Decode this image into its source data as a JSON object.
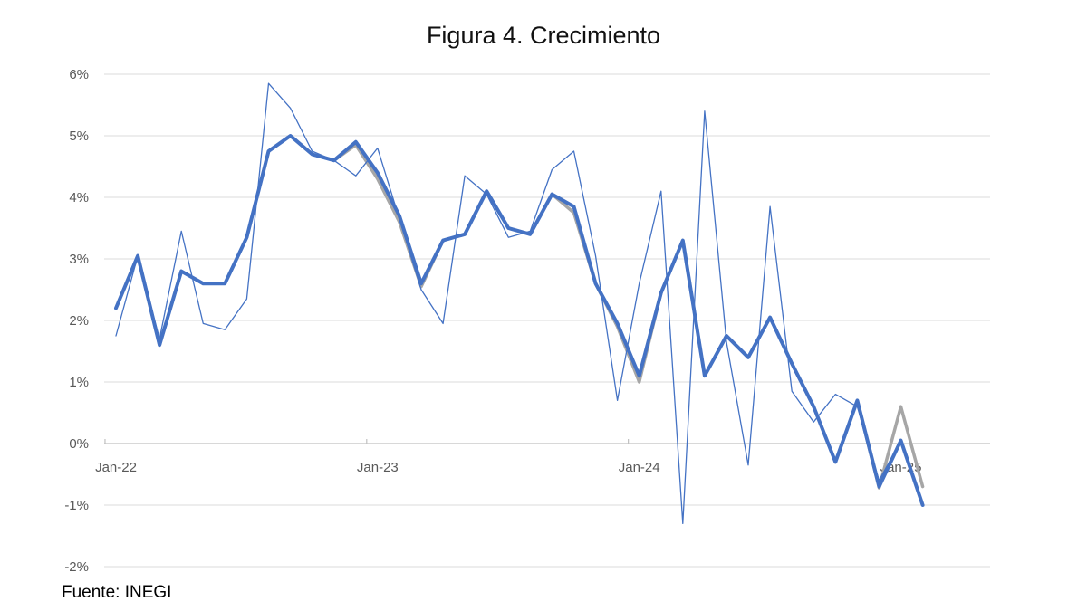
{
  "title": "Figura 4. Crecimiento",
  "source_note": "Fuente: INEGI",
  "colors": {
    "series_blue": "#4472C4",
    "series_gray": "#A6A6A6",
    "gridline": "#DBDBDB",
    "axis_line": "#C0C0C0",
    "axis_text": "#595959",
    "title_text": "#111111"
  },
  "chart_data": {
    "type": "line",
    "title": "Figura 4. Crecimiento",
    "xlabel": "",
    "ylabel": "",
    "ylim": [
      -2,
      6
    ],
    "grid": true,
    "legend": false,
    "y_tick_labels": [
      "6%",
      "5%",
      "4%",
      "3%",
      "2%",
      "1%",
      "0%",
      "-1%",
      "-2%"
    ],
    "y_tick_values": [
      6,
      5,
      4,
      3,
      2,
      1,
      0,
      -1,
      -2
    ],
    "x_tick_labels": [
      "Jan-22",
      "Jan-23",
      "Jan-24",
      "Jan-25"
    ],
    "x": [
      "Jan-22",
      "Feb-22",
      "Mar-22",
      "Apr-22",
      "May-22",
      "Jun-22",
      "Jul-22",
      "Aug-22",
      "Sep-22",
      "Oct-22",
      "Nov-22",
      "Dec-22",
      "Jan-23",
      "Feb-23",
      "Mar-23",
      "Apr-23",
      "May-23",
      "Jun-23",
      "Jul-23",
      "Aug-23",
      "Sep-23",
      "Oct-23",
      "Nov-23",
      "Dec-23",
      "Jan-24",
      "Feb-24",
      "Mar-24",
      "Apr-24",
      "May-24",
      "Jun-24",
      "Jul-24",
      "Aug-24",
      "Sep-24",
      "Oct-24",
      "Nov-24",
      "Dec-24",
      "Jan-25",
      "Feb-25"
    ],
    "series": [
      {
        "name": "serie-gris",
        "color": "#A6A6A6",
        "stroke_width": 3.5,
        "values": [
          2.2,
          3.05,
          1.6,
          2.8,
          2.6,
          2.6,
          3.35,
          4.75,
          5.0,
          4.7,
          4.6,
          4.85,
          4.3,
          3.6,
          2.55,
          3.3,
          3.4,
          4.1,
          3.5,
          3.4,
          4.05,
          3.75,
          2.6,
          1.9,
          1.0,
          2.45,
          3.3,
          1.1,
          1.75,
          1.4,
          2.05,
          1.3,
          0.6,
          -0.3,
          0.7,
          -0.72,
          0.6,
          -0.7
        ]
      },
      {
        "name": "tendencia-gruesa",
        "color": "#4472C4",
        "stroke_width": 4,
        "values": [
          2.2,
          3.05,
          1.6,
          2.8,
          2.6,
          2.6,
          3.35,
          4.75,
          5.0,
          4.7,
          4.6,
          4.9,
          4.4,
          3.7,
          2.6,
          3.3,
          3.4,
          4.1,
          3.5,
          3.4,
          4.05,
          3.85,
          2.6,
          1.95,
          1.1,
          2.45,
          3.3,
          1.1,
          1.75,
          1.4,
          2.05,
          1.3,
          0.6,
          -0.3,
          0.7,
          -0.7,
          0.05,
          -1.0
        ]
      },
      {
        "name": "serie-mensual-delgada",
        "color": "#4472C4",
        "stroke_width": 1.3,
        "values": [
          1.75,
          3.05,
          1.7,
          3.45,
          1.95,
          1.85,
          2.35,
          5.85,
          5.45,
          4.75,
          4.6,
          4.35,
          4.8,
          3.65,
          2.5,
          1.95,
          4.35,
          4.05,
          3.35,
          3.45,
          4.45,
          4.75,
          3.05,
          0.7,
          2.6,
          4.1,
          -1.3,
          5.4,
          1.65,
          -0.35,
          3.85,
          0.85,
          0.35,
          0.8,
          0.6,
          -0.6,
          0.05,
          -1.0
        ]
      }
    ]
  }
}
